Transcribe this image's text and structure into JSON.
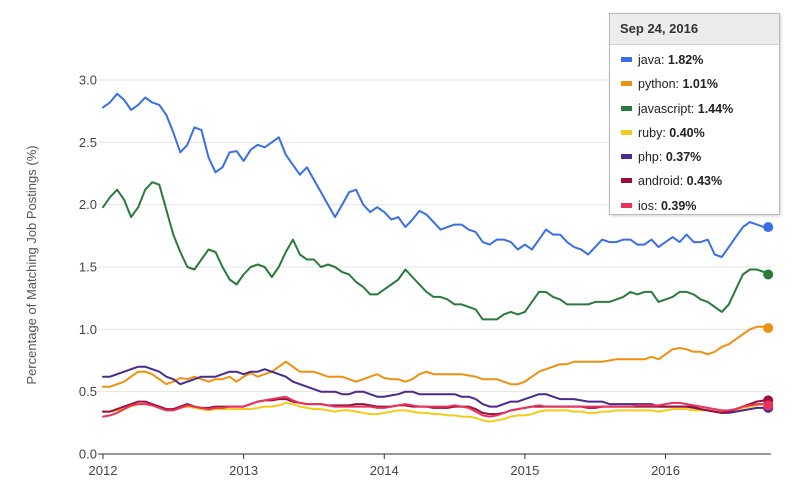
{
  "chart_data": {
    "type": "line",
    "ylabel": "Percentage of Matching Job Postings (%)",
    "xlabel": "",
    "xlim": [
      2012.0,
      2016.75
    ],
    "ylim": [
      0,
      3.0
    ],
    "x_ticks": [
      {
        "value": 2012,
        "label": "2012"
      },
      {
        "value": 2013,
        "label": "2013"
      },
      {
        "value": 2014,
        "label": "2014"
      },
      {
        "value": 2015,
        "label": "2015"
      },
      {
        "value": 2016,
        "label": "2016"
      }
    ],
    "y_ticks": [
      {
        "value": 0,
        "label": "0.0"
      },
      {
        "value": 0.5,
        "label": "0.5"
      },
      {
        "value": 1.0,
        "label": "1.0"
      },
      {
        "value": 1.5,
        "label": "1.5"
      },
      {
        "value": 2.0,
        "label": "2.0"
      },
      {
        "value": 2.5,
        "label": "2.5"
      },
      {
        "value": 3.0,
        "label": "3.0"
      }
    ],
    "grid": "horizontal",
    "x": [
      2012.0,
      2012.05,
      2012.1,
      2012.15,
      2012.2,
      2012.25,
      2012.3,
      2012.35,
      2012.4,
      2012.45,
      2012.5,
      2012.55,
      2012.6,
      2012.65,
      2012.7,
      2012.75,
      2012.8,
      2012.85,
      2012.9,
      2012.95,
      2013.0,
      2013.05,
      2013.1,
      2013.15,
      2013.2,
      2013.25,
      2013.3,
      2013.35,
      2013.4,
      2013.45,
      2013.5,
      2013.55,
      2013.6,
      2013.65,
      2013.7,
      2013.75,
      2013.8,
      2013.85,
      2013.9,
      2013.95,
      2014.0,
      2014.05,
      2014.1,
      2014.15,
      2014.2,
      2014.25,
      2014.3,
      2014.35,
      2014.4,
      2014.45,
      2014.5,
      2014.55,
      2014.6,
      2014.65,
      2014.7,
      2014.75,
      2014.8,
      2014.85,
      2014.9,
      2014.95,
      2015.0,
      2015.05,
      2015.1,
      2015.15,
      2015.2,
      2015.25,
      2015.3,
      2015.35,
      2015.4,
      2015.45,
      2015.5,
      2015.55,
      2015.6,
      2015.65,
      2015.7,
      2015.75,
      2015.8,
      2015.85,
      2015.9,
      2015.95,
      2016.0,
      2016.05,
      2016.1,
      2016.15,
      2016.2,
      2016.25,
      2016.3,
      2016.35,
      2016.4,
      2016.45,
      2016.5,
      2016.55,
      2016.6,
      2016.65,
      2016.7,
      2016.73
    ],
    "series": [
      {
        "name": "java",
        "color": "#3a6ee8",
        "values": [
          2.78,
          2.82,
          2.89,
          2.84,
          2.76,
          2.8,
          2.86,
          2.82,
          2.8,
          2.72,
          2.58,
          2.42,
          2.48,
          2.62,
          2.6,
          2.38,
          2.26,
          2.3,
          2.42,
          2.43,
          2.35,
          2.44,
          2.48,
          2.46,
          2.5,
          2.54,
          2.4,
          2.32,
          2.24,
          2.3,
          2.2,
          2.1,
          2.0,
          1.9,
          2.0,
          2.1,
          2.12,
          2.0,
          1.94,
          1.98,
          1.94,
          1.88,
          1.9,
          1.82,
          1.88,
          1.95,
          1.92,
          1.86,
          1.8,
          1.82,
          1.84,
          1.84,
          1.8,
          1.78,
          1.7,
          1.68,
          1.72,
          1.72,
          1.7,
          1.64,
          1.68,
          1.64,
          1.72,
          1.8,
          1.76,
          1.76,
          1.7,
          1.66,
          1.64,
          1.6,
          1.66,
          1.72,
          1.7,
          1.7,
          1.72,
          1.72,
          1.68,
          1.68,
          1.72,
          1.66,
          1.7,
          1.74,
          1.7,
          1.76,
          1.7,
          1.7,
          1.72,
          1.6,
          1.58,
          1.66,
          1.74,
          1.82,
          1.86,
          1.84,
          1.82,
          1.82
        ]
      },
      {
        "name": "python",
        "color": "#f0900f",
        "values": [
          0.54,
          0.54,
          0.56,
          0.58,
          0.62,
          0.66,
          0.66,
          0.64,
          0.6,
          0.56,
          0.58,
          0.61,
          0.6,
          0.62,
          0.6,
          0.58,
          0.6,
          0.6,
          0.62,
          0.58,
          0.62,
          0.65,
          0.62,
          0.64,
          0.66,
          0.7,
          0.74,
          0.7,
          0.66,
          0.66,
          0.66,
          0.64,
          0.62,
          0.62,
          0.62,
          0.6,
          0.58,
          0.6,
          0.62,
          0.64,
          0.61,
          0.6,
          0.6,
          0.58,
          0.6,
          0.64,
          0.66,
          0.64,
          0.64,
          0.64,
          0.64,
          0.64,
          0.63,
          0.62,
          0.6,
          0.6,
          0.6,
          0.58,
          0.56,
          0.56,
          0.58,
          0.62,
          0.66,
          0.68,
          0.7,
          0.72,
          0.72,
          0.74,
          0.74,
          0.74,
          0.74,
          0.74,
          0.75,
          0.76,
          0.76,
          0.76,
          0.76,
          0.76,
          0.78,
          0.76,
          0.8,
          0.84,
          0.85,
          0.84,
          0.82,
          0.82,
          0.8,
          0.82,
          0.86,
          0.88,
          0.92,
          0.96,
          1.0,
          1.02,
          1.02,
          1.01
        ]
      },
      {
        "name": "javascript",
        "color": "#2a7a3c",
        "values": [
          1.98,
          2.06,
          2.12,
          2.04,
          1.9,
          1.98,
          2.12,
          2.18,
          2.16,
          1.96,
          1.76,
          1.62,
          1.5,
          1.48,
          1.56,
          1.64,
          1.62,
          1.5,
          1.4,
          1.36,
          1.44,
          1.5,
          1.52,
          1.5,
          1.42,
          1.5,
          1.62,
          1.72,
          1.6,
          1.56,
          1.56,
          1.5,
          1.52,
          1.5,
          1.46,
          1.44,
          1.38,
          1.34,
          1.28,
          1.28,
          1.32,
          1.36,
          1.4,
          1.48,
          1.42,
          1.36,
          1.3,
          1.26,
          1.26,
          1.24,
          1.2,
          1.2,
          1.18,
          1.16,
          1.08,
          1.08,
          1.08,
          1.12,
          1.14,
          1.12,
          1.14,
          1.22,
          1.3,
          1.3,
          1.26,
          1.24,
          1.2,
          1.2,
          1.2,
          1.2,
          1.22,
          1.22,
          1.22,
          1.24,
          1.26,
          1.3,
          1.28,
          1.3,
          1.3,
          1.22,
          1.24,
          1.26,
          1.3,
          1.3,
          1.28,
          1.24,
          1.22,
          1.18,
          1.14,
          1.2,
          1.32,
          1.44,
          1.48,
          1.48,
          1.46,
          1.44
        ]
      },
      {
        "name": "ruby",
        "color": "#f2cc1a",
        "values": [
          0.34,
          0.34,
          0.35,
          0.36,
          0.38,
          0.4,
          0.4,
          0.39,
          0.37,
          0.35,
          0.36,
          0.37,
          0.38,
          0.37,
          0.36,
          0.35,
          0.36,
          0.36,
          0.36,
          0.36,
          0.36,
          0.36,
          0.37,
          0.38,
          0.38,
          0.39,
          0.41,
          0.4,
          0.38,
          0.37,
          0.36,
          0.36,
          0.35,
          0.34,
          0.35,
          0.35,
          0.34,
          0.33,
          0.32,
          0.32,
          0.33,
          0.34,
          0.35,
          0.35,
          0.34,
          0.33,
          0.33,
          0.32,
          0.32,
          0.31,
          0.31,
          0.3,
          0.3,
          0.29,
          0.27,
          0.26,
          0.27,
          0.28,
          0.3,
          0.31,
          0.31,
          0.32,
          0.34,
          0.35,
          0.35,
          0.35,
          0.35,
          0.34,
          0.34,
          0.33,
          0.33,
          0.34,
          0.34,
          0.35,
          0.35,
          0.35,
          0.35,
          0.35,
          0.35,
          0.34,
          0.35,
          0.36,
          0.36,
          0.36,
          0.35,
          0.35,
          0.35,
          0.34,
          0.34,
          0.34,
          0.35,
          0.37,
          0.38,
          0.39,
          0.4,
          0.4
        ]
      },
      {
        "name": "php",
        "color": "#4a2a8a",
        "values": [
          0.62,
          0.62,
          0.64,
          0.66,
          0.68,
          0.7,
          0.7,
          0.68,
          0.66,
          0.62,
          0.6,
          0.56,
          0.58,
          0.6,
          0.62,
          0.62,
          0.62,
          0.64,
          0.66,
          0.66,
          0.64,
          0.66,
          0.66,
          0.68,
          0.66,
          0.64,
          0.62,
          0.58,
          0.56,
          0.54,
          0.52,
          0.5,
          0.5,
          0.5,
          0.48,
          0.48,
          0.5,
          0.5,
          0.48,
          0.46,
          0.46,
          0.47,
          0.48,
          0.5,
          0.5,
          0.48,
          0.48,
          0.48,
          0.48,
          0.48,
          0.48,
          0.46,
          0.46,
          0.44,
          0.4,
          0.38,
          0.38,
          0.4,
          0.42,
          0.42,
          0.44,
          0.46,
          0.48,
          0.48,
          0.46,
          0.44,
          0.44,
          0.44,
          0.43,
          0.42,
          0.42,
          0.42,
          0.4,
          0.4,
          0.4,
          0.4,
          0.4,
          0.4,
          0.4,
          0.38,
          0.38,
          0.38,
          0.38,
          0.38,
          0.38,
          0.36,
          0.35,
          0.34,
          0.33,
          0.33,
          0.34,
          0.35,
          0.36,
          0.37,
          0.37,
          0.37
        ]
      },
      {
        "name": "android",
        "color": "#9a0e3a",
        "values": [
          0.34,
          0.34,
          0.36,
          0.38,
          0.4,
          0.42,
          0.42,
          0.4,
          0.38,
          0.36,
          0.36,
          0.38,
          0.4,
          0.38,
          0.37,
          0.37,
          0.38,
          0.38,
          0.38,
          0.38,
          0.38,
          0.4,
          0.42,
          0.43,
          0.43,
          0.44,
          0.44,
          0.42,
          0.41,
          0.4,
          0.4,
          0.4,
          0.39,
          0.39,
          0.39,
          0.39,
          0.4,
          0.4,
          0.39,
          0.38,
          0.38,
          0.38,
          0.39,
          0.39,
          0.38,
          0.38,
          0.38,
          0.37,
          0.37,
          0.37,
          0.38,
          0.38,
          0.38,
          0.36,
          0.33,
          0.32,
          0.32,
          0.33,
          0.35,
          0.36,
          0.37,
          0.38,
          0.38,
          0.38,
          0.38,
          0.38,
          0.38,
          0.38,
          0.38,
          0.37,
          0.37,
          0.38,
          0.38,
          0.38,
          0.38,
          0.38,
          0.38,
          0.38,
          0.38,
          0.38,
          0.38,
          0.38,
          0.38,
          0.38,
          0.37,
          0.36,
          0.35,
          0.34,
          0.33,
          0.34,
          0.36,
          0.38,
          0.4,
          0.42,
          0.43,
          0.43
        ]
      },
      {
        "name": "ios",
        "color": "#e8335f",
        "values": [
          0.3,
          0.31,
          0.33,
          0.36,
          0.39,
          0.4,
          0.4,
          0.39,
          0.37,
          0.35,
          0.35,
          0.37,
          0.39,
          0.38,
          0.37,
          0.36,
          0.37,
          0.37,
          0.38,
          0.38,
          0.38,
          0.4,
          0.42,
          0.43,
          0.44,
          0.45,
          0.46,
          0.43,
          0.41,
          0.4,
          0.4,
          0.4,
          0.39,
          0.38,
          0.38,
          0.38,
          0.38,
          0.38,
          0.38,
          0.37,
          0.37,
          0.38,
          0.39,
          0.4,
          0.39,
          0.38,
          0.38,
          0.38,
          0.38,
          0.38,
          0.39,
          0.38,
          0.37,
          0.34,
          0.31,
          0.3,
          0.31,
          0.33,
          0.35,
          0.36,
          0.37,
          0.38,
          0.39,
          0.38,
          0.38,
          0.38,
          0.38,
          0.38,
          0.38,
          0.38,
          0.38,
          0.38,
          0.38,
          0.38,
          0.38,
          0.38,
          0.39,
          0.39,
          0.39,
          0.39,
          0.4,
          0.41,
          0.41,
          0.4,
          0.39,
          0.38,
          0.37,
          0.36,
          0.35,
          0.35,
          0.36,
          0.38,
          0.39,
          0.4,
          0.4,
          0.39
        ]
      }
    ]
  },
  "tooltip": {
    "date": "Sep 24, 2016",
    "rows": [
      {
        "name": "java",
        "value": "1.82%",
        "color": "#3a6ee8"
      },
      {
        "name": "python",
        "value": "1.01%",
        "color": "#f0900f"
      },
      {
        "name": "javascript",
        "value": "1.44%",
        "color": "#2a7a3c"
      },
      {
        "name": "ruby",
        "value": "0.40%",
        "color": "#f2cc1a"
      },
      {
        "name": "php",
        "value": "0.37%",
        "color": "#4a2a8a"
      },
      {
        "name": "android",
        "value": "0.43%",
        "color": "#9a0e3a"
      },
      {
        "name": "ios",
        "value": "0.39%",
        "color": "#e8335f"
      }
    ]
  }
}
